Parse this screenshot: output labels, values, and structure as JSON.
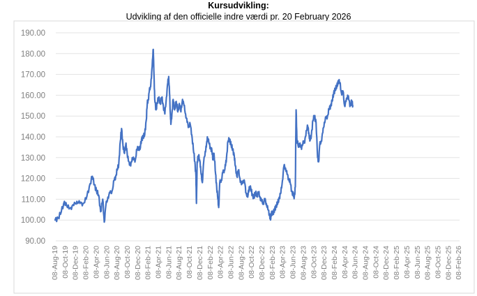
{
  "chart_data": {
    "type": "line",
    "title": "Kursudvikling:",
    "subtitle": "Udvikling af den officielle indre værdi pr. 20 February 2026",
    "xlabel": "",
    "ylabel": "",
    "ylim": [
      90,
      190
    ],
    "yticks": [
      "190.00",
      "180.00",
      "170.00",
      "160.00",
      "150.00",
      "140.00",
      "130.00",
      "120.00",
      "110.00",
      "100.00",
      "90.00"
    ],
    "xticks": [
      "08-Aug-19",
      "08-Oct-19",
      "08-Dec-19",
      "08-Feb-20",
      "08-Apr-20",
      "08-Jun-20",
      "08-Aug-20",
      "08-Oct-20",
      "08-Dec-20",
      "08-Feb-21",
      "08-Apr-21",
      "08-Jun-21",
      "08-Aug-21",
      "08-Oct-21",
      "08-Dec-21",
      "08-Feb-22",
      "08-Apr-22",
      "08-Jun-22",
      "08-Aug-22",
      "08-Oct-22",
      "08-Dec-22",
      "08-Feb-23",
      "08-Apr-23",
      "08-Jun-23",
      "08-Aug-23",
      "08-Oct-23",
      "08-Dec-23",
      "08-Feb-24",
      "08-Apr-24",
      "08-Jun-24",
      "08-Aug-24",
      "08-Oct-24",
      "08-Dec-24",
      "08-Feb-25",
      "08-Apr-25",
      "08-Jun-25",
      "08-Aug-25",
      "08-Oct-25",
      "08-Dec-25",
      "08-Feb-26"
    ],
    "grid": true,
    "line_color": "#4472c4",
    "series": [
      {
        "name": "Indre værdi",
        "points": [
          [
            0,
            100
          ],
          [
            0.3,
            101
          ],
          [
            0.6,
            104
          ],
          [
            0.9,
            109
          ],
          [
            1.2,
            106
          ],
          [
            1.5,
            106
          ],
          [
            1.8,
            107
          ],
          [
            2.1,
            109
          ],
          [
            2.4,
            108
          ],
          [
            2.7,
            108
          ],
          [
            3.0,
            110
          ],
          [
            3.3,
            116
          ],
          [
            3.6,
            121
          ],
          [
            3.8,
            117
          ],
          [
            4.0,
            114
          ],
          [
            4.2,
            112
          ],
          [
            4.4,
            104
          ],
          [
            4.6,
            110
          ],
          [
            4.75,
            99
          ],
          [
            4.9,
            107
          ],
          [
            5.1,
            111
          ],
          [
            5.3,
            113
          ],
          [
            5.5,
            114
          ],
          [
            5.7,
            119
          ],
          [
            5.85,
            121
          ],
          [
            6.0,
            124
          ],
          [
            6.15,
            127
          ],
          [
            6.3,
            138
          ],
          [
            6.42,
            144
          ],
          [
            6.55,
            136
          ],
          [
            6.7,
            132
          ],
          [
            6.85,
            137
          ],
          [
            7.0,
            130
          ],
          [
            7.15,
            128
          ],
          [
            7.3,
            126
          ],
          [
            7.45,
            130
          ],
          [
            7.6,
            129
          ],
          [
            7.75,
            129
          ],
          [
            7.9,
            134
          ],
          [
            8.05,
            135
          ],
          [
            8.2,
            134
          ],
          [
            8.35,
            139
          ],
          [
            8.5,
            140
          ],
          [
            8.65,
            141
          ],
          [
            8.8,
            148
          ],
          [
            8.9,
            156
          ],
          [
            9.0,
            158
          ],
          [
            9.1,
            162
          ],
          [
            9.2,
            164
          ],
          [
            9.3,
            168
          ],
          [
            9.4,
            177
          ],
          [
            9.48,
            182
          ],
          [
            9.55,
            170
          ],
          [
            9.62,
            158
          ],
          [
            9.75,
            153
          ],
          [
            9.85,
            156
          ],
          [
            10.0,
            159
          ],
          [
            10.15,
            156
          ],
          [
            10.3,
            159
          ],
          [
            10.45,
            155
          ],
          [
            10.6,
            151
          ],
          [
            10.75,
            159
          ],
          [
            10.88,
            166
          ],
          [
            10.97,
            169
          ],
          [
            11.05,
            161
          ],
          [
            11.12,
            152
          ],
          [
            11.18,
            146
          ],
          [
            11.28,
            151
          ],
          [
            11.4,
            158
          ],
          [
            11.55,
            153
          ],
          [
            11.7,
            157
          ],
          [
            11.85,
            152
          ],
          [
            12.0,
            156
          ],
          [
            12.15,
            152
          ],
          [
            12.3,
            158
          ],
          [
            12.45,
            155
          ],
          [
            12.6,
            151
          ],
          [
            12.75,
            147
          ],
          [
            12.9,
            145
          ],
          [
            13.05,
            146
          ],
          [
            13.2,
            141
          ],
          [
            13.35,
            134
          ],
          [
            13.5,
            128
          ],
          [
            13.6,
            121
          ],
          [
            13.65,
            108
          ],
          [
            13.72,
            128
          ],
          [
            13.85,
            131
          ],
          [
            14.0,
            128
          ],
          [
            14.1,
            122
          ],
          [
            14.22,
            118
          ],
          [
            14.35,
            128
          ],
          [
            14.5,
            133
          ],
          [
            14.6,
            135
          ],
          [
            14.7,
            140
          ],
          [
            14.85,
            137
          ],
          [
            15.0,
            135
          ],
          [
            15.15,
            133
          ],
          [
            15.25,
            129
          ],
          [
            15.35,
            132
          ],
          [
            15.5,
            122
          ],
          [
            15.6,
            116
          ],
          [
            15.72,
            110
          ],
          [
            15.8,
            106
          ],
          [
            15.9,
            118
          ],
          [
            16.05,
            119
          ],
          [
            16.2,
            123
          ],
          [
            16.35,
            124
          ],
          [
            16.45,
            126
          ],
          [
            16.55,
            130
          ],
          [
            16.7,
            138
          ],
          [
            16.85,
            139
          ],
          [
            17.0,
            136
          ],
          [
            17.15,
            134
          ],
          [
            17.3,
            131
          ],
          [
            17.4,
            126
          ],
          [
            17.55,
            121
          ],
          [
            17.7,
            124
          ],
          [
            17.85,
            120
          ],
          [
            18.0,
            117
          ],
          [
            18.15,
            119
          ],
          [
            18.3,
            118
          ],
          [
            18.45,
            113
          ],
          [
            18.6,
            111
          ],
          [
            18.75,
            116
          ],
          [
            18.9,
            115
          ],
          [
            19.05,
            112
          ],
          [
            19.2,
            111
          ],
          [
            19.35,
            113
          ],
          [
            19.5,
            112
          ],
          [
            19.65,
            113
          ],
          [
            19.8,
            111
          ],
          [
            19.95,
            109
          ],
          [
            20.1,
            108
          ],
          [
            20.25,
            110
          ],
          [
            20.4,
            108
          ],
          [
            20.55,
            105
          ],
          [
            20.7,
            103
          ],
          [
            20.8,
            100
          ],
          [
            20.9,
            104
          ],
          [
            21.05,
            103
          ],
          [
            21.2,
            105
          ],
          [
            21.35,
            107
          ],
          [
            21.5,
            108
          ],
          [
            21.65,
            111
          ],
          [
            21.8,
            113
          ],
          [
            21.95,
            119
          ],
          [
            22.1,
            126
          ],
          [
            22.25,
            125
          ],
          [
            22.4,
            122
          ],
          [
            22.55,
            120
          ],
          [
            22.7,
            118
          ],
          [
            22.85,
            114
          ],
          [
            23.0,
            112
          ],
          [
            23.1,
            111
          ],
          [
            23.2,
            116
          ],
          [
            23.27,
            153
          ],
          [
            23.35,
            139
          ],
          [
            23.5,
            135
          ],
          [
            23.65,
            137
          ],
          [
            23.8,
            134
          ],
          [
            23.95,
            138
          ],
          [
            24.1,
            137
          ],
          [
            24.25,
            143
          ],
          [
            24.4,
            145
          ],
          [
            24.5,
            142
          ],
          [
            24.6,
            138
          ],
          [
            24.75,
            141
          ],
          [
            24.9,
            148
          ],
          [
            25.05,
            150
          ],
          [
            25.2,
            147
          ],
          [
            25.35,
            130
          ],
          [
            25.45,
            128
          ],
          [
            25.55,
            136
          ],
          [
            25.7,
            138
          ],
          [
            25.85,
            142
          ],
          [
            26.0,
            147
          ],
          [
            26.15,
            149
          ],
          [
            26.3,
            150
          ],
          [
            26.45,
            153
          ],
          [
            26.6,
            155
          ],
          [
            26.75,
            157
          ],
          [
            26.9,
            161
          ],
          [
            27.05,
            163
          ],
          [
            27.2,
            164
          ],
          [
            27.35,
            167
          ],
          [
            27.5,
            166
          ],
          [
            27.65,
            161
          ],
          [
            27.8,
            162
          ],
          [
            27.95,
            155
          ],
          [
            28.1,
            157
          ],
          [
            28.25,
            160
          ],
          [
            28.35,
            158
          ],
          [
            28.5,
            155
          ],
          [
            28.65,
            157
          ],
          [
            28.75,
            155
          ]
        ]
      }
    ]
  }
}
